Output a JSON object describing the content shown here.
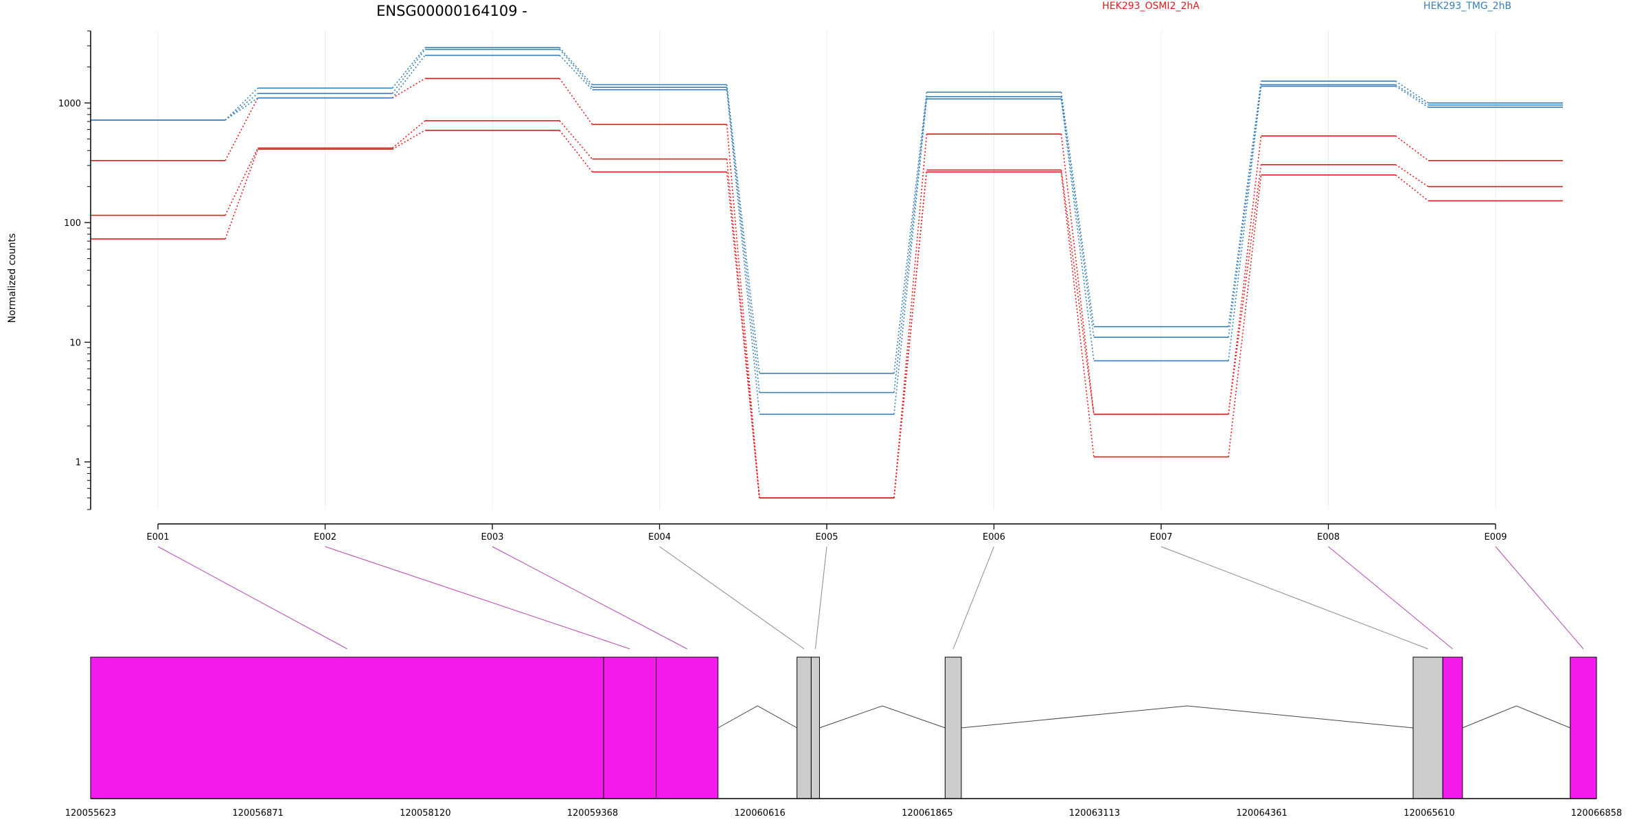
{
  "chart_data": {
    "type": "line",
    "title": "ENSG00000164109 -",
    "ylabel": "Normalized counts",
    "yscale": "log",
    "ylim": [
      0.4,
      4000
    ],
    "y_ticks": [
      1,
      10,
      100,
      1000
    ],
    "legend_placement": "top-right",
    "grid": true,
    "categories": [
      "E001",
      "E002",
      "E003",
      "E004",
      "E005",
      "E006",
      "E007",
      "E008",
      "E009"
    ],
    "series": [
      {
        "name": "HEK293_OSMI2_2hA",
        "color": "#e41a1c",
        "values": [
          330,
          1100,
          1600,
          660,
          0.5,
          550,
          2.5,
          530,
          330
        ]
      },
      {
        "name": "",
        "color": "#e41a1c",
        "values": [
          115,
          420,
          710,
          340,
          0.5,
          275,
          2.5,
          305,
          200
        ]
      },
      {
        "name": "",
        "color": "#e41a1c",
        "values": [
          73,
          410,
          590,
          265,
          0.5,
          265,
          1.1,
          250,
          152
        ]
      },
      {
        "name": "HEK293_TMG_2hB",
        "color": "#377eb8",
        "values": [
          720,
          1330,
          2900,
          1420,
          5.5,
          1230,
          13.5,
          1520,
          1000
        ]
      },
      {
        "name": "",
        "color": "#377eb8",
        "values": [
          720,
          1200,
          2800,
          1350,
          3.8,
          1130,
          11,
          1420,
          960
        ]
      },
      {
        "name": "",
        "color": "#377eb8",
        "values": [
          720,
          1100,
          2500,
          1290,
          2.5,
          1080,
          7,
          1380,
          920
        ]
      }
    ],
    "gene_model": {
      "x_ticks": [
        120055623,
        120056871,
        120058120,
        120059368,
        120060616,
        120061865,
        120063113,
        120064361,
        120065610,
        120066858
      ],
      "xlim": [
        120055623,
        120066858
      ],
      "highlight_color": "#f31cec",
      "plain_color": "#cccccc",
      "exons": [
        {
          "id": "E001",
          "start": 120055623,
          "end": 120059451,
          "highlight": true
        },
        {
          "id": "E002",
          "start": 120059451,
          "end": 120059842,
          "highlight": true
        },
        {
          "id": "E003",
          "start": 120059842,
          "end": 120060304,
          "highlight": true
        },
        {
          "id": "E004",
          "start": 120060893,
          "end": 120060999,
          "highlight": false
        },
        {
          "id": "E005",
          "start": 120060999,
          "end": 120061061,
          "highlight": false
        },
        {
          "id": "E006",
          "start": 120061998,
          "end": 120062119,
          "highlight": false
        },
        {
          "id": "E007",
          "start": 120065490,
          "end": 120065711,
          "highlight": false
        },
        {
          "id": "E008",
          "start": 120065711,
          "end": 120065858,
          "highlight": true
        },
        {
          "id": "E009",
          "start": 120066662,
          "end": 120066858,
          "highlight": true
        }
      ]
    }
  }
}
